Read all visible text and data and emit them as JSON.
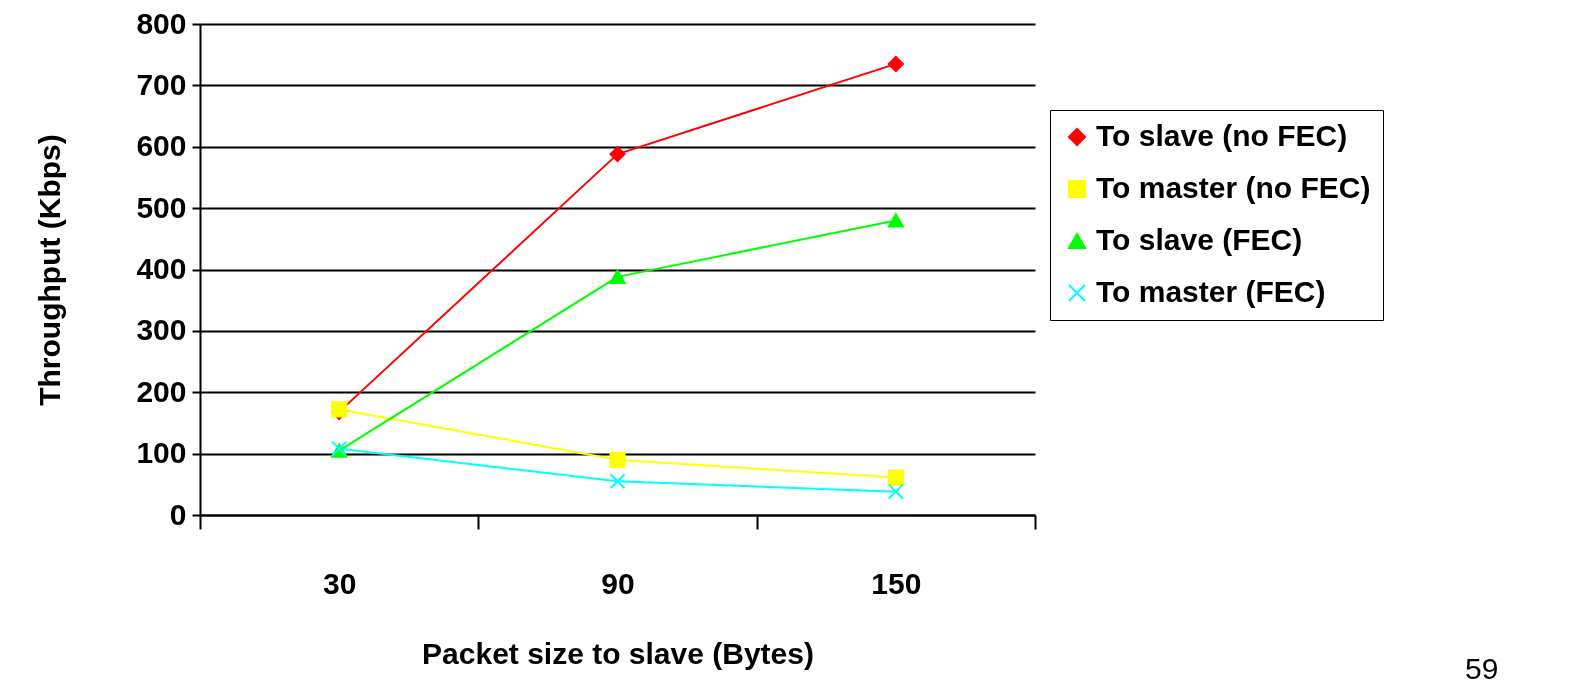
{
  "chart_data": {
    "type": "line",
    "xlabel": "Packet size to slave (Bytes)",
    "ylabel": "Throughput (Kbps)",
    "categories": [
      "30",
      "90",
      "150"
    ],
    "series": [
      {
        "name": "To slave (no FEC)",
        "color": "#ff0000",
        "marker": "diamond",
        "values": [
          168,
          588,
          735
        ]
      },
      {
        "name": "To master (no FEC)",
        "color": "#ffff00",
        "marker": "square",
        "values": [
          172,
          90,
          61
        ]
      },
      {
        "name": "To slave (FEC)",
        "color": "#00ff00",
        "marker": "triangle",
        "values": [
          105,
          388,
          480
        ]
      },
      {
        "name": "To master (FEC)",
        "color": "#00ffff",
        "marker": "cross",
        "values": [
          108,
          55,
          38
        ]
      }
    ],
    "ylim": [
      0,
      800
    ],
    "yticks": [
      0,
      100,
      200,
      300,
      400,
      500,
      600,
      700,
      800
    ],
    "grid": "y",
    "legend": "right",
    "annotations": [
      "59"
    ]
  }
}
